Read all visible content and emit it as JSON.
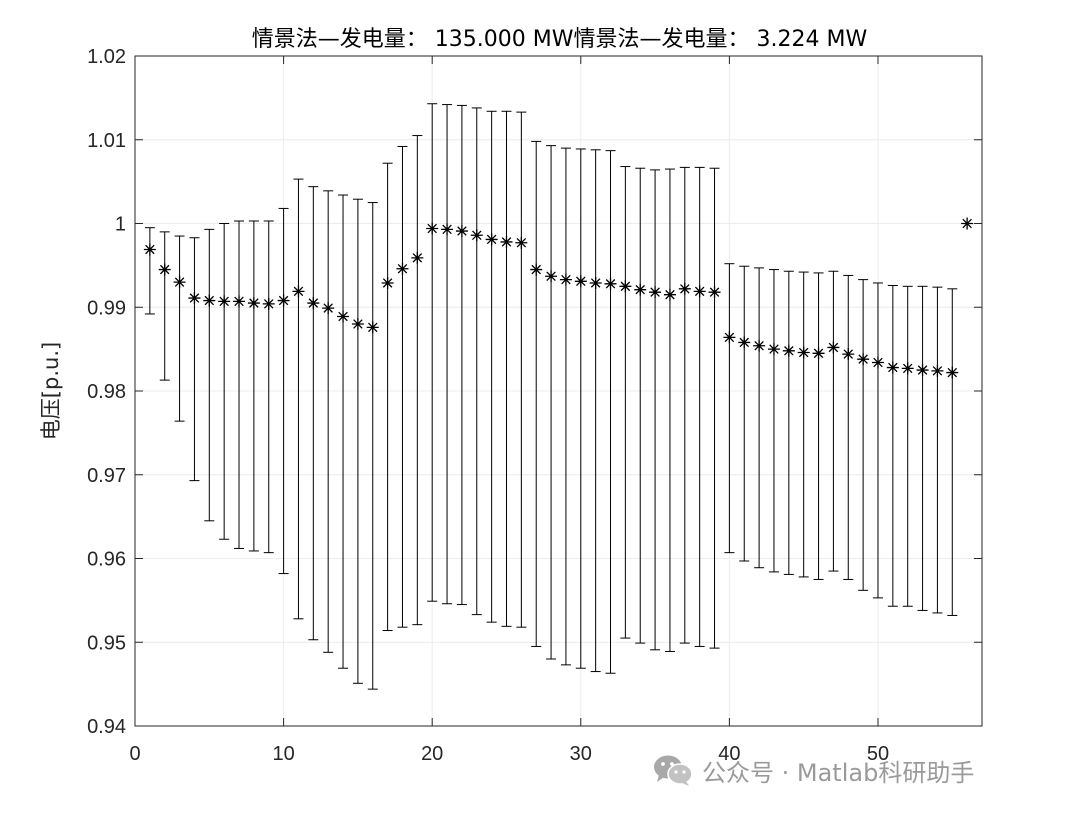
{
  "chart_data": {
    "type": "errorbar",
    "title": "情景法—发电量： 135.000 MW情景法—发电量： 3.224 MW",
    "xlabel": "",
    "ylabel": "电压[p.u.]",
    "xlim": [
      0,
      57
    ],
    "ylim": [
      0.94,
      1.02
    ],
    "xticks": [
      0,
      10,
      20,
      30,
      40,
      50
    ],
    "yticks": [
      0.94,
      0.95,
      0.96,
      0.97,
      0.98,
      0.99,
      1.0,
      1.01,
      1.02
    ],
    "ytick_labels": [
      "0.94",
      "0.95",
      "0.96",
      "0.97",
      "0.98",
      "0.99",
      "1",
      "1.01",
      "1.02"
    ],
    "grid": true,
    "marker": "asterisk",
    "x": [
      1,
      2,
      3,
      4,
      5,
      6,
      7,
      8,
      9,
      10,
      11,
      12,
      13,
      14,
      15,
      16,
      17,
      18,
      19,
      20,
      21,
      22,
      23,
      24,
      25,
      26,
      27,
      28,
      29,
      30,
      31,
      32,
      33,
      34,
      35,
      36,
      37,
      38,
      39,
      40,
      41,
      42,
      43,
      44,
      45,
      46,
      47,
      48,
      49,
      50,
      51,
      52,
      53,
      54,
      55,
      56
    ],
    "y": [
      0.9969,
      0.9945,
      0.993,
      0.9911,
      0.9908,
      0.9907,
      0.9907,
      0.9905,
      0.9904,
      0.9908,
      0.9919,
      0.9905,
      0.9899,
      0.9889,
      0.988,
      0.9876,
      0.9929,
      0.9946,
      0.9959,
      0.9994,
      0.9993,
      0.9991,
      0.9986,
      0.9981,
      0.9978,
      0.9977,
      0.9945,
      0.9937,
      0.9933,
      0.9931,
      0.9929,
      0.9928,
      0.9925,
      0.9921,
      0.9918,
      0.9915,
      0.9922,
      0.9919,
      0.9918,
      0.9864,
      0.9858,
      0.9854,
      0.985,
      0.9848,
      0.9846,
      0.9845,
      0.9852,
      0.9844,
      0.9838,
      0.9834,
      0.9828,
      0.9827,
      0.9825,
      0.9824,
      0.9822,
      1.0
    ],
    "lower": [
      0.9892,
      0.9813,
      0.9764,
      0.9693,
      0.9645,
      0.9623,
      0.9612,
      0.9609,
      0.9607,
      0.9582,
      0.9528,
      0.9503,
      0.9488,
      0.9469,
      0.9451,
      0.9444,
      0.9514,
      0.9518,
      0.9521,
      0.9549,
      0.9546,
      0.9545,
      0.9533,
      0.9524,
      0.9519,
      0.9518,
      0.9495,
      0.948,
      0.9473,
      0.9469,
      0.9465,
      0.9463,
      0.9505,
      0.9499,
      0.9491,
      0.9489,
      0.9499,
      0.9495,
      0.9493,
      0.9607,
      0.9597,
      0.9589,
      0.9584,
      0.9581,
      0.9578,
      0.9575,
      0.9585,
      0.9575,
      0.9562,
      0.9553,
      0.9543,
      0.9543,
      0.9538,
      0.9535,
      0.9532,
      1.0
    ],
    "upper": [
      0.9995,
      0.999,
      0.9985,
      0.9983,
      0.9993,
      1.0,
      1.0003,
      1.0003,
      1.0003,
      1.0018,
      1.0053,
      1.0044,
      1.0039,
      1.0034,
      1.0029,
      1.0025,
      1.0072,
      1.0092,
      1.0105,
      1.0143,
      1.0142,
      1.0141,
      1.0138,
      1.0134,
      1.0134,
      1.0133,
      1.0098,
      1.0093,
      1.009,
      1.0089,
      1.0088,
      1.0087,
      1.0068,
      1.0066,
      1.0064,
      1.0065,
      1.0067,
      1.0067,
      1.0066,
      0.9952,
      0.9949,
      0.9947,
      0.9945,
      0.9943,
      0.9942,
      0.9941,
      0.9943,
      0.9938,
      0.9933,
      0.9929,
      0.9926,
      0.9925,
      0.9925,
      0.9924,
      0.9922,
      1.0
    ]
  },
  "watermark": {
    "icon": "wechat-icon",
    "text": "公众号 · Matlab科研助手"
  }
}
